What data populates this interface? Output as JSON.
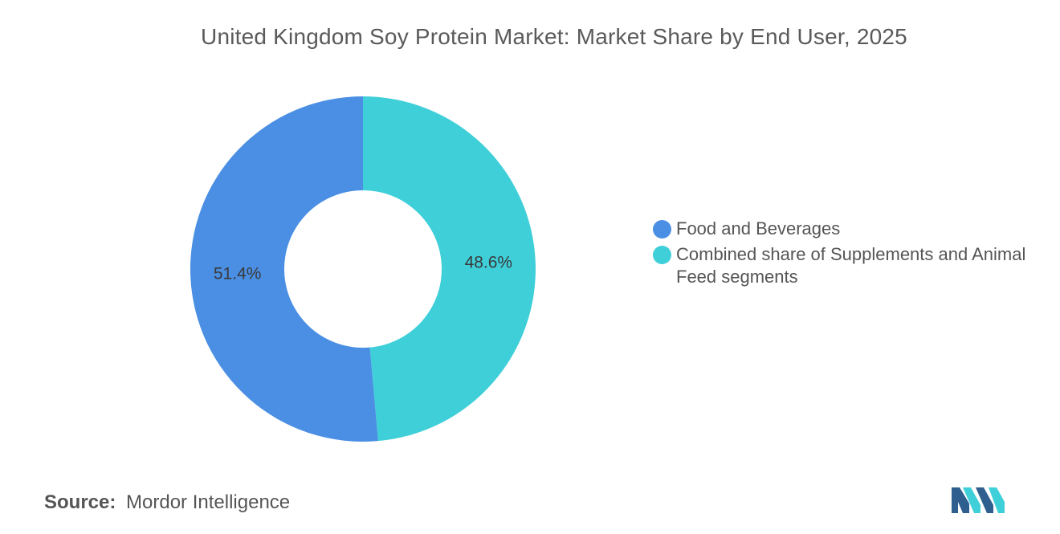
{
  "chart_data": {
    "type": "pie",
    "variant": "donut",
    "title": "United Kingdom Soy Protein Market: Market Share by End User, 2025",
    "categories": [
      "Food and Beverages",
      "Combined share of Supplements and Animal Feed segments"
    ],
    "values": [
      51.4,
      48.6
    ],
    "value_labels": [
      "51.4%",
      "48.6%"
    ],
    "colors": [
      "#4a8fe3",
      "#3fcfd9"
    ],
    "legend_placement": "right"
  },
  "source": {
    "prefix": "Source:",
    "text": "Mordor Intelligence"
  },
  "logo": {
    "icon": "mordor-intelligence-logo",
    "colors": [
      "#2f5f8f",
      "#3fcfd9"
    ]
  }
}
